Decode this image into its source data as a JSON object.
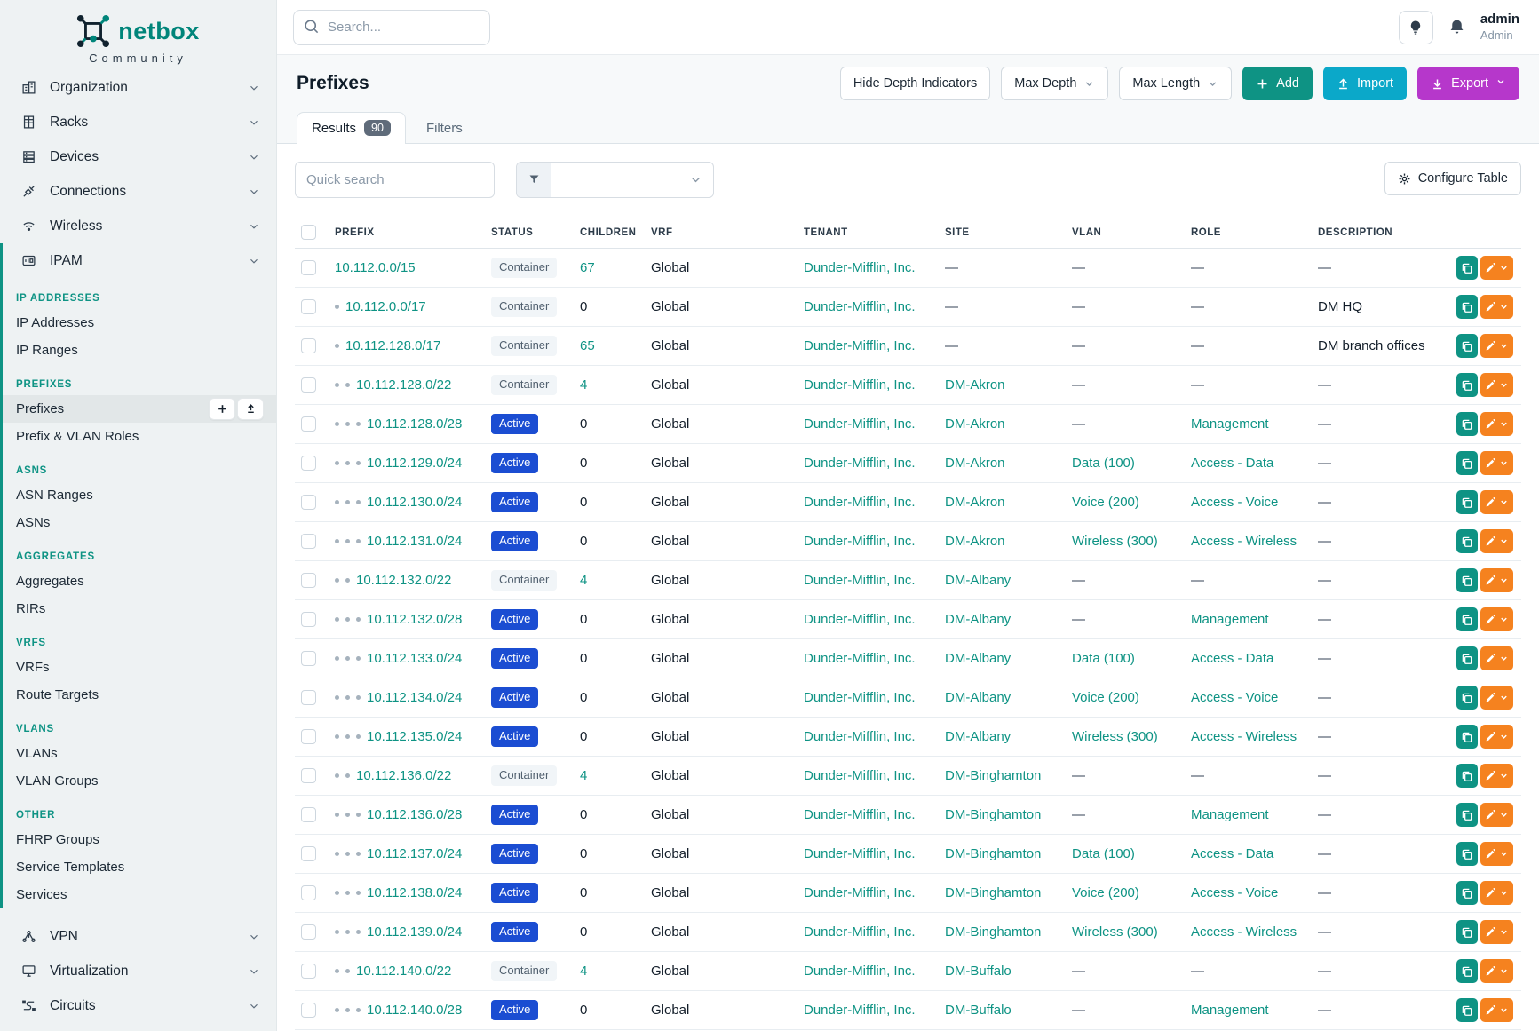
{
  "colors": {
    "accent_teal": "#0e9384",
    "brand_teal": "#00857a",
    "import_cyan": "#0ba8c9",
    "export_purple": "#b637cb",
    "edit_orange": "#f5821f",
    "active_badge_blue": "#1b4dd2"
  },
  "brand": {
    "name": "netbox",
    "subtitle": "Community"
  },
  "topbar": {
    "search_placeholder": "Search...",
    "user_name": "admin",
    "user_role": "Admin"
  },
  "sidebar": {
    "menu_top": [
      {
        "label": "Organization",
        "icon": "organization-icon"
      },
      {
        "label": "Racks",
        "icon": "racks-icon"
      },
      {
        "label": "Devices",
        "icon": "devices-icon"
      },
      {
        "label": "Connections",
        "icon": "connections-icon"
      },
      {
        "label": "Wireless",
        "icon": "wireless-icon"
      }
    ],
    "ipam": {
      "label": "IPAM",
      "icon": "ipam-icon"
    },
    "sections": [
      {
        "title": "IP ADDRESSES",
        "items": [
          {
            "label": "IP Addresses"
          },
          {
            "label": "IP Ranges"
          }
        ]
      },
      {
        "title": "PREFIXES",
        "items": [
          {
            "label": "Prefixes",
            "active": true,
            "actions": [
              "plus-icon",
              "upload-icon"
            ]
          },
          {
            "label": "Prefix & VLAN Roles"
          }
        ]
      },
      {
        "title": "ASNS",
        "items": [
          {
            "label": "ASN Ranges"
          },
          {
            "label": "ASNs"
          }
        ]
      },
      {
        "title": "AGGREGATES",
        "items": [
          {
            "label": "Aggregates"
          },
          {
            "label": "RIRs"
          }
        ]
      },
      {
        "title": "VRFS",
        "items": [
          {
            "label": "VRFs"
          },
          {
            "label": "Route Targets"
          }
        ]
      },
      {
        "title": "VLANS",
        "items": [
          {
            "label": "VLANs"
          },
          {
            "label": "VLAN Groups"
          }
        ]
      },
      {
        "title": "OTHER",
        "items": [
          {
            "label": "FHRP Groups"
          },
          {
            "label": "Service Templates"
          },
          {
            "label": "Services"
          }
        ]
      }
    ],
    "menu_bottom": [
      {
        "label": "VPN",
        "icon": "vpn-icon"
      },
      {
        "label": "Virtualization",
        "icon": "virtualization-icon"
      },
      {
        "label": "Circuits",
        "icon": "circuits-icon"
      }
    ]
  },
  "page": {
    "title": "Prefixes",
    "hide_depth_button": "Hide Depth Indicators",
    "max_depth_button": "Max Depth",
    "max_length_button": "Max Length",
    "add_button": "Add",
    "import_button": "Import",
    "export_button": "Export"
  },
  "tabs": {
    "results_label": "Results",
    "results_count": "90",
    "filters_label": "Filters"
  },
  "toolbar": {
    "quick_search_placeholder": "Quick search",
    "configure_table_label": "Configure Table"
  },
  "table": {
    "columns": [
      "PREFIX",
      "STATUS",
      "CHILDREN",
      "VRF",
      "TENANT",
      "SITE",
      "VLAN",
      "ROLE",
      "DESCRIPTION"
    ],
    "rows": [
      {
        "depth": 0,
        "prefix": "10.112.0.0/15",
        "status": "Container",
        "children": "67",
        "vrf": "Global",
        "tenant": "Dunder-Mifflin, Inc.",
        "site": "—",
        "vlan": "—",
        "role": "—",
        "description": "—"
      },
      {
        "depth": 1,
        "prefix": "10.112.0.0/17",
        "status": "Container",
        "children": "0",
        "vrf": "Global",
        "tenant": "Dunder-Mifflin, Inc.",
        "site": "—",
        "vlan": "—",
        "role": "—",
        "description": "DM HQ"
      },
      {
        "depth": 1,
        "prefix": "10.112.128.0/17",
        "status": "Container",
        "children": "65",
        "vrf": "Global",
        "tenant": "Dunder-Mifflin, Inc.",
        "site": "—",
        "vlan": "—",
        "role": "—",
        "description": "DM branch offices"
      },
      {
        "depth": 2,
        "prefix": "10.112.128.0/22",
        "status": "Container",
        "children": "4",
        "vrf": "Global",
        "tenant": "Dunder-Mifflin, Inc.",
        "site": "DM-Akron",
        "vlan": "—",
        "role": "—",
        "description": "—"
      },
      {
        "depth": 3,
        "prefix": "10.112.128.0/28",
        "status": "Active",
        "children": "0",
        "vrf": "Global",
        "tenant": "Dunder-Mifflin, Inc.",
        "site": "DM-Akron",
        "vlan": "—",
        "role": "Management",
        "description": "—"
      },
      {
        "depth": 3,
        "prefix": "10.112.129.0/24",
        "status": "Active",
        "children": "0",
        "vrf": "Global",
        "tenant": "Dunder-Mifflin, Inc.",
        "site": "DM-Akron",
        "vlan": "Data (100)",
        "role": "Access - Data",
        "description": "—"
      },
      {
        "depth": 3,
        "prefix": "10.112.130.0/24",
        "status": "Active",
        "children": "0",
        "vrf": "Global",
        "tenant": "Dunder-Mifflin, Inc.",
        "site": "DM-Akron",
        "vlan": "Voice (200)",
        "role": "Access - Voice",
        "description": "—"
      },
      {
        "depth": 3,
        "prefix": "10.112.131.0/24",
        "status": "Active",
        "children": "0",
        "vrf": "Global",
        "tenant": "Dunder-Mifflin, Inc.",
        "site": "DM-Akron",
        "vlan": "Wireless (300)",
        "role": "Access - Wireless",
        "description": "—"
      },
      {
        "depth": 2,
        "prefix": "10.112.132.0/22",
        "status": "Container",
        "children": "4",
        "vrf": "Global",
        "tenant": "Dunder-Mifflin, Inc.",
        "site": "DM-Albany",
        "vlan": "—",
        "role": "—",
        "description": "—"
      },
      {
        "depth": 3,
        "prefix": "10.112.132.0/28",
        "status": "Active",
        "children": "0",
        "vrf": "Global",
        "tenant": "Dunder-Mifflin, Inc.",
        "site": "DM-Albany",
        "vlan": "—",
        "role": "Management",
        "description": "—"
      },
      {
        "depth": 3,
        "prefix": "10.112.133.0/24",
        "status": "Active",
        "children": "0",
        "vrf": "Global",
        "tenant": "Dunder-Mifflin, Inc.",
        "site": "DM-Albany",
        "vlan": "Data (100)",
        "role": "Access - Data",
        "description": "—"
      },
      {
        "depth": 3,
        "prefix": "10.112.134.0/24",
        "status": "Active",
        "children": "0",
        "vrf": "Global",
        "tenant": "Dunder-Mifflin, Inc.",
        "site": "DM-Albany",
        "vlan": "Voice (200)",
        "role": "Access - Voice",
        "description": "—"
      },
      {
        "depth": 3,
        "prefix": "10.112.135.0/24",
        "status": "Active",
        "children": "0",
        "vrf": "Global",
        "tenant": "Dunder-Mifflin, Inc.",
        "site": "DM-Albany",
        "vlan": "Wireless (300)",
        "role": "Access - Wireless",
        "description": "—"
      },
      {
        "depth": 2,
        "prefix": "10.112.136.0/22",
        "status": "Container",
        "children": "4",
        "vrf": "Global",
        "tenant": "Dunder-Mifflin, Inc.",
        "site": "DM-Binghamton",
        "vlan": "—",
        "role": "—",
        "description": "—"
      },
      {
        "depth": 3,
        "prefix": "10.112.136.0/28",
        "status": "Active",
        "children": "0",
        "vrf": "Global",
        "tenant": "Dunder-Mifflin, Inc.",
        "site": "DM-Binghamton",
        "vlan": "—",
        "role": "Management",
        "description": "—"
      },
      {
        "depth": 3,
        "prefix": "10.112.137.0/24",
        "status": "Active",
        "children": "0",
        "vrf": "Global",
        "tenant": "Dunder-Mifflin, Inc.",
        "site": "DM-Binghamton",
        "vlan": "Data (100)",
        "role": "Access - Data",
        "description": "—"
      },
      {
        "depth": 3,
        "prefix": "10.112.138.0/24",
        "status": "Active",
        "children": "0",
        "vrf": "Global",
        "tenant": "Dunder-Mifflin, Inc.",
        "site": "DM-Binghamton",
        "vlan": "Voice (200)",
        "role": "Access - Voice",
        "description": "—"
      },
      {
        "depth": 3,
        "prefix": "10.112.139.0/24",
        "status": "Active",
        "children": "0",
        "vrf": "Global",
        "tenant": "Dunder-Mifflin, Inc.",
        "site": "DM-Binghamton",
        "vlan": "Wireless (300)",
        "role": "Access - Wireless",
        "description": "—"
      },
      {
        "depth": 2,
        "prefix": "10.112.140.0/22",
        "status": "Container",
        "children": "4",
        "vrf": "Global",
        "tenant": "Dunder-Mifflin, Inc.",
        "site": "DM-Buffalo",
        "vlan": "—",
        "role": "—",
        "description": "—"
      },
      {
        "depth": 3,
        "prefix": "10.112.140.0/28",
        "status": "Active",
        "children": "0",
        "vrf": "Global",
        "tenant": "Dunder-Mifflin, Inc.",
        "site": "DM-Buffalo",
        "vlan": "—",
        "role": "Management",
        "description": "—"
      }
    ]
  }
}
